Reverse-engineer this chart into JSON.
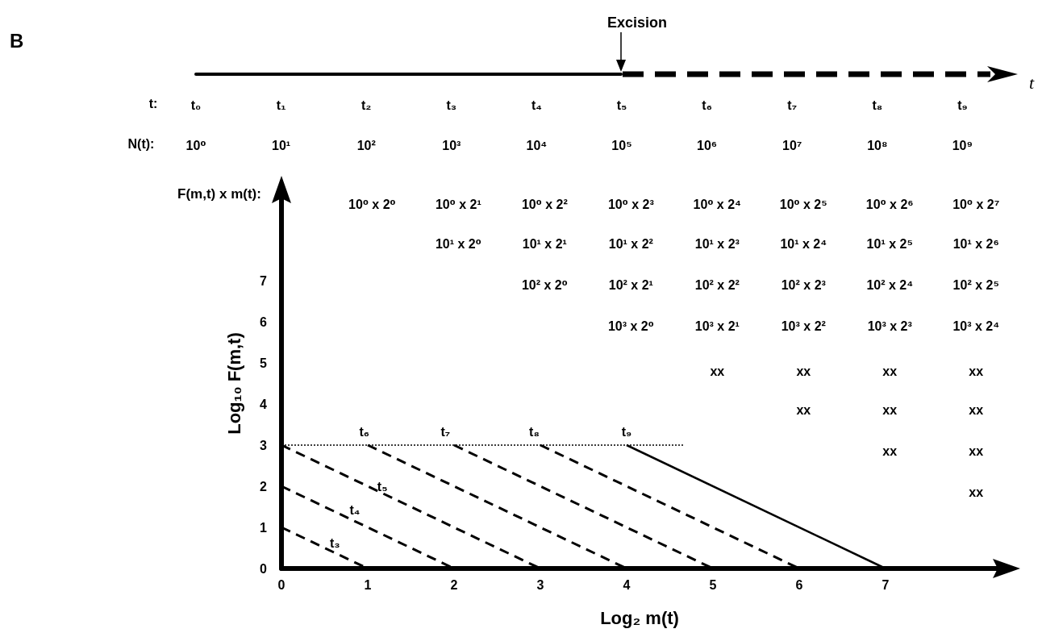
{
  "chart_data": {
    "type": "line",
    "xlabel": "Log₂ m(t)",
    "ylabel": "Log₁₀ F(m,t)",
    "xlim": [
      0,
      8.3
    ],
    "ylim": [
      0,
      9
    ],
    "xticks": [
      0,
      1,
      2,
      3,
      4,
      5,
      6,
      7
    ],
    "yticks": [
      0,
      1,
      2,
      3,
      4,
      5,
      6,
      7
    ],
    "marker": "none",
    "series": [
      {
        "color": "#000000",
        "line_style": "dotted",
        "x": [
          0,
          4.66
        ],
        "values": [
          3,
          3
        ]
      },
      {
        "color": "#000000",
        "line_style": "dashed",
        "x": [
          0,
          1
        ],
        "values": [
          1,
          0
        ]
      },
      {
        "color": "#000000",
        "line_style": "dashed",
        "x": [
          0,
          2
        ],
        "values": [
          2,
          0
        ]
      },
      {
        "color": "#000000",
        "line_style": "dashed",
        "x": [
          0,
          3
        ],
        "values": [
          3,
          0
        ]
      },
      {
        "color": "#000000",
        "line_style": "dashed",
        "x": [
          1,
          4
        ],
        "values": [
          3,
          0
        ]
      },
      {
        "color": "#000000",
        "line_style": "dashed",
        "x": [
          2,
          5
        ],
        "values": [
          3,
          0
        ]
      },
      {
        "color": "#000000",
        "line_style": "dashed",
        "x": [
          3,
          6
        ],
        "values": [
          3,
          0
        ]
      },
      {
        "color": "#000000",
        "line_style": "solid",
        "x": [
          4,
          7
        ],
        "values": [
          3,
          0
        ]
      }
    ],
    "annotations": [
      "B",
      "Excision",
      "t",
      "t:",
      "N(t):",
      "F(m,t) x m(t):",
      "t₀",
      "t₁",
      "t₂",
      "t₃",
      "t₄",
      "t₅",
      "t₆",
      "t₇",
      "t₈",
      "t₉",
      "10⁰",
      "10¹",
      "10²",
      "10³",
      "10⁴",
      "10⁵",
      "10⁶",
      "10⁷",
      "10⁸",
      "10⁹",
      "t₃",
      "t₄",
      "t₅",
      "t₆",
      "t₇",
      "t₈",
      "t₉",
      "10⁰ x 2⁰",
      "10⁰ x 2¹",
      "10⁰ x 2²",
      "10⁰ x 2³",
      "10⁰ x 2⁴",
      "10⁰ x 2⁵",
      "10⁰ x 2⁶",
      "10⁰ x 2⁷",
      "10¹ x 2⁰",
      "10¹ x 2¹",
      "10¹ x 2²",
      "10¹ x 2³",
      "10¹ x 2⁴",
      "10¹ x 2⁵",
      "10¹ x 2⁶",
      "10² x 2⁰",
      "10² x 2¹",
      "10² x 2²",
      "10² x 2³",
      "10² x 2⁴",
      "10² x 2⁵",
      "10³ x 2⁰",
      "10³ x 2¹",
      "10³ x 2²",
      "10³ x 2³",
      "10³ x 2⁴",
      "xx",
      "xx",
      "xx",
      "xx",
      "xx",
      "xx",
      "xx",
      "xx",
      "xx",
      "xx"
    ]
  }
}
